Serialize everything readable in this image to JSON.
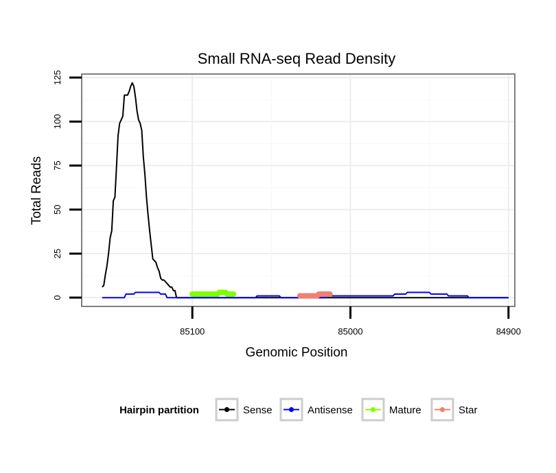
{
  "chart_data": {
    "type": "line",
    "title": "Small RNA-seq Read Density",
    "xlabel": "Genomic Position",
    "ylabel": "Total Reads",
    "x_reversed": true,
    "xlim": [
      85170,
      84896
    ],
    "ylim": [
      -5,
      127
    ],
    "x_ticks": [
      85100,
      85000,
      84900
    ],
    "x_tick_labels": [
      "85100",
      "85000",
      "84900"
    ],
    "y_ticks": [
      0,
      25,
      50,
      75,
      100,
      125
    ],
    "y_tick_labels": [
      "0",
      "25",
      "50",
      "75",
      "100",
      "125"
    ],
    "grid": true,
    "legend_position": "bottom",
    "legend_title": "Hairpin partition",
    "series": [
      {
        "name": "Sense",
        "color": "#000000",
        "style": "line",
        "x": [
          85157,
          85156,
          85155,
          85154,
          85153,
          85152,
          85151,
          85150,
          85149,
          85148,
          85147,
          85146,
          85145,
          85144,
          85143,
          85142,
          85141,
          85140,
          85139,
          85138,
          85137,
          85136,
          85135,
          85134,
          85133,
          85132,
          85131,
          85130,
          85129,
          85128,
          85127,
          85126,
          85125,
          85124,
          85123,
          85122,
          85121,
          85120,
          85119,
          85118,
          85117,
          85116,
          85115,
          85114,
          85113,
          85112,
          85111,
          85110,
          85109,
          85108,
          85107,
          85106,
          85105,
          85104,
          85070,
          85060,
          85059,
          85045,
          85043,
          85040,
          85031,
          85030,
          85020,
          85019,
          85000,
          84982,
          84981,
          84968,
          84967,
          84958,
          84957,
          84950,
          84949,
          84945,
          84944,
          84939,
          84938,
          84935,
          84934,
          84926,
          84925,
          84900
        ],
        "y": [
          6,
          7,
          13,
          18,
          25,
          34,
          38,
          55,
          57,
          74,
          92,
          99,
          101,
          103,
          115,
          115,
          115,
          117,
          120,
          122,
          120,
          114,
          106,
          101,
          99,
          95,
          80,
          70,
          57,
          47,
          38,
          30,
          22,
          21,
          20,
          17,
          15,
          11,
          10,
          10,
          9,
          8,
          7,
          6,
          6,
          4,
          4,
          0,
          0,
          0,
          0,
          0,
          0,
          0,
          0,
          0,
          0,
          0,
          0,
          0,
          0,
          0,
          0,
          0,
          0,
          0,
          0,
          0,
          0,
          0,
          0,
          0,
          0,
          0,
          0,
          0,
          0,
          0,
          0,
          0,
          0,
          0
        ]
      },
      {
        "name": "Antisense",
        "color": "#0000ff",
        "style": "line",
        "x": [
          85157,
          85143,
          85142,
          85137,
          85136,
          85121,
          85120,
          85117,
          85116,
          85060,
          85059,
          85045,
          85044,
          85015,
          85014,
          84987,
          84986,
          84973,
          84972,
          84965,
          84964,
          84950,
          84949,
          84947,
          84946,
          84939,
          84938,
          84935,
          84934,
          84926,
          84925,
          84900
        ],
        "y": [
          0,
          0,
          2,
          2,
          3,
          3,
          2,
          2,
          0,
          0,
          1,
          1,
          0,
          0,
          1,
          1,
          1,
          1,
          2,
          2,
          3,
          3,
          2,
          2,
          2,
          2,
          1,
          1,
          1,
          1,
          0,
          0
        ]
      },
      {
        "name": "Mature",
        "color": "#80ff00",
        "style": "thick",
        "x": [
          85100,
          85092,
          85091,
          85084,
          85083,
          85079,
          85078,
          85074
        ],
        "y": [
          2,
          2,
          2,
          2,
          3,
          3,
          2,
          2
        ]
      },
      {
        "name": "Star",
        "color": "#f08070",
        "style": "thick",
        "x": [
          85032,
          85021,
          85020,
          85013
        ],
        "y": [
          1,
          1,
          2,
          2
        ]
      }
    ]
  }
}
